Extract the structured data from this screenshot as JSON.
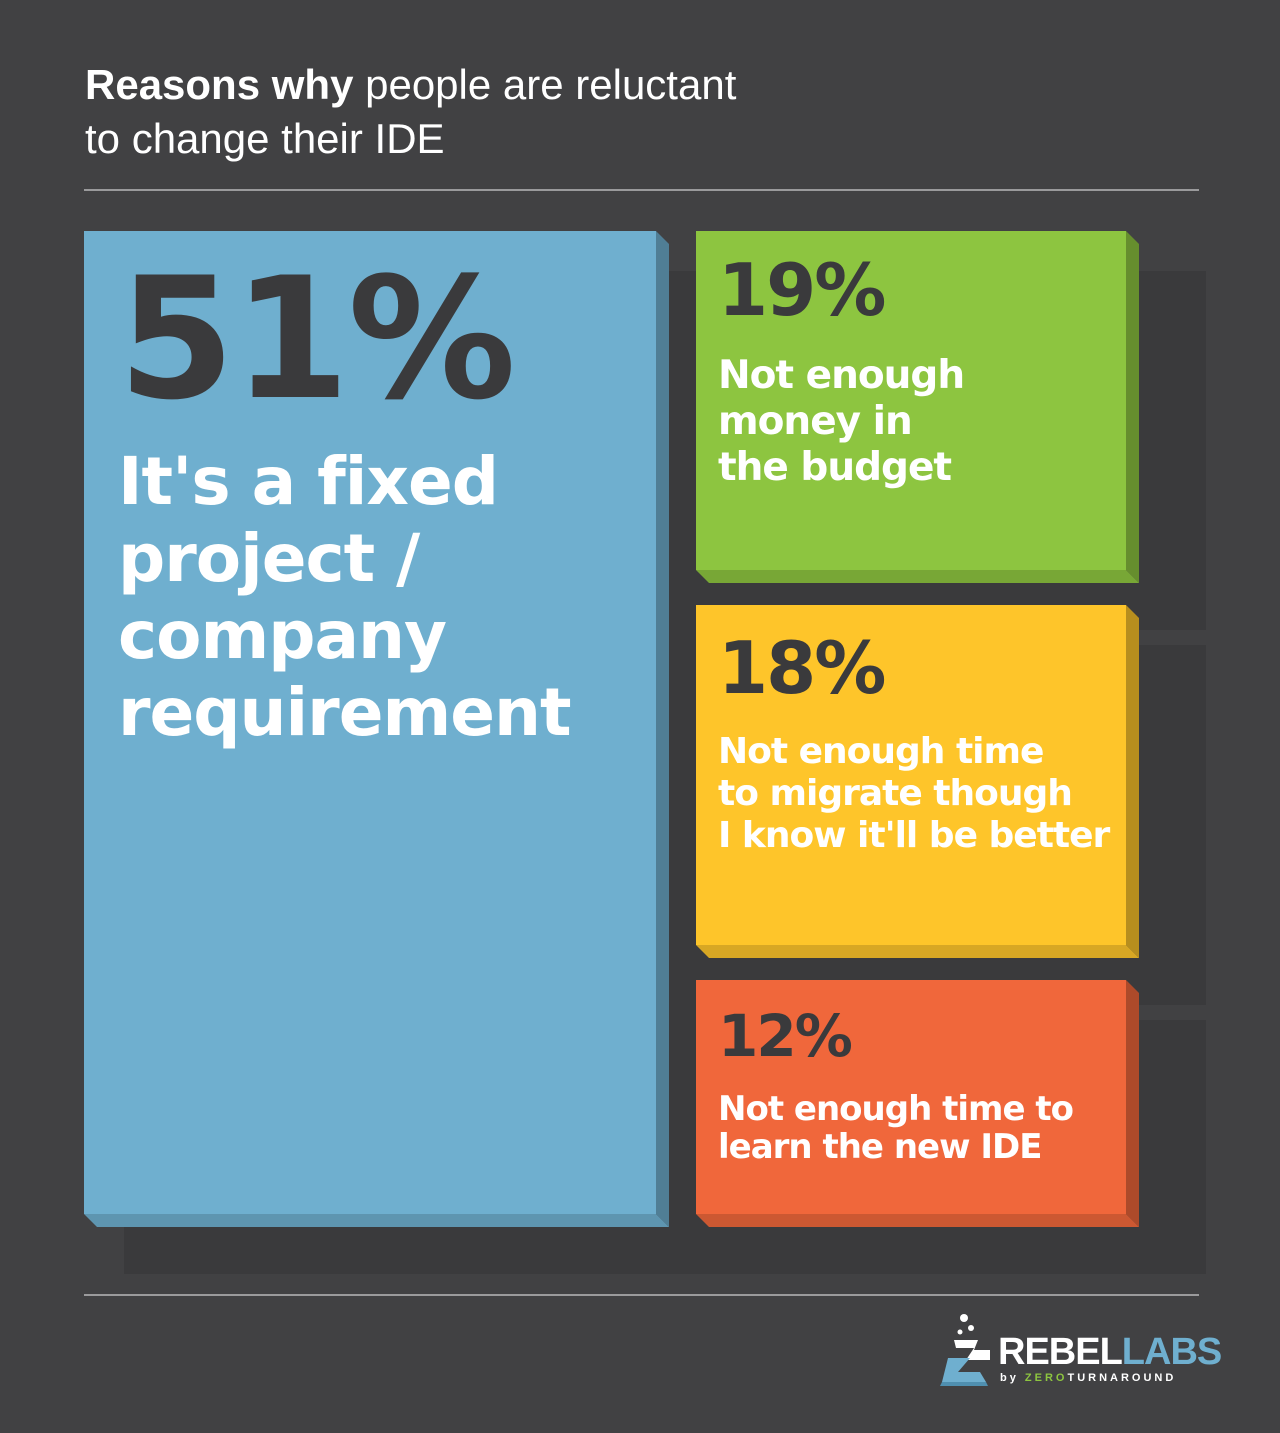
{
  "title": {
    "bold": "Reasons why",
    "rest_line1": " people are reluctant",
    "line2": "to change their IDE"
  },
  "colors": {
    "background": "#414143",
    "blue": "#6fafcf",
    "green": "#8dc540",
    "yellow": "#fec52a",
    "orange": "#f0673b"
  },
  "chart_data": {
    "type": "treemap",
    "title": "Reasons why people are reluctant to change their IDE",
    "unit": "%",
    "items": [
      {
        "value": 51,
        "value_label": "51%",
        "label_lines": [
          "It's a fixed",
          "project /",
          "company",
          "requirement"
        ],
        "color": "#6fafcf"
      },
      {
        "value": 19,
        "value_label": "19%",
        "label_lines": [
          "Not enough",
          "money in",
          "the budget"
        ],
        "color": "#8dc540"
      },
      {
        "value": 18,
        "value_label": "18%",
        "label_lines": [
          "Not enough time",
          "to migrate though",
          "I know it'll be better"
        ],
        "color": "#fec52a"
      },
      {
        "value": 12,
        "value_label": "12%",
        "label_lines": [
          "Not enough time to",
          "learn the new IDE"
        ],
        "color": "#f0673b"
      }
    ]
  },
  "logo": {
    "rebel": "REBEL",
    "labs": "LABS",
    "by": "by ",
    "zero": "ZERO",
    "turnaround": "TURNAROUND"
  }
}
